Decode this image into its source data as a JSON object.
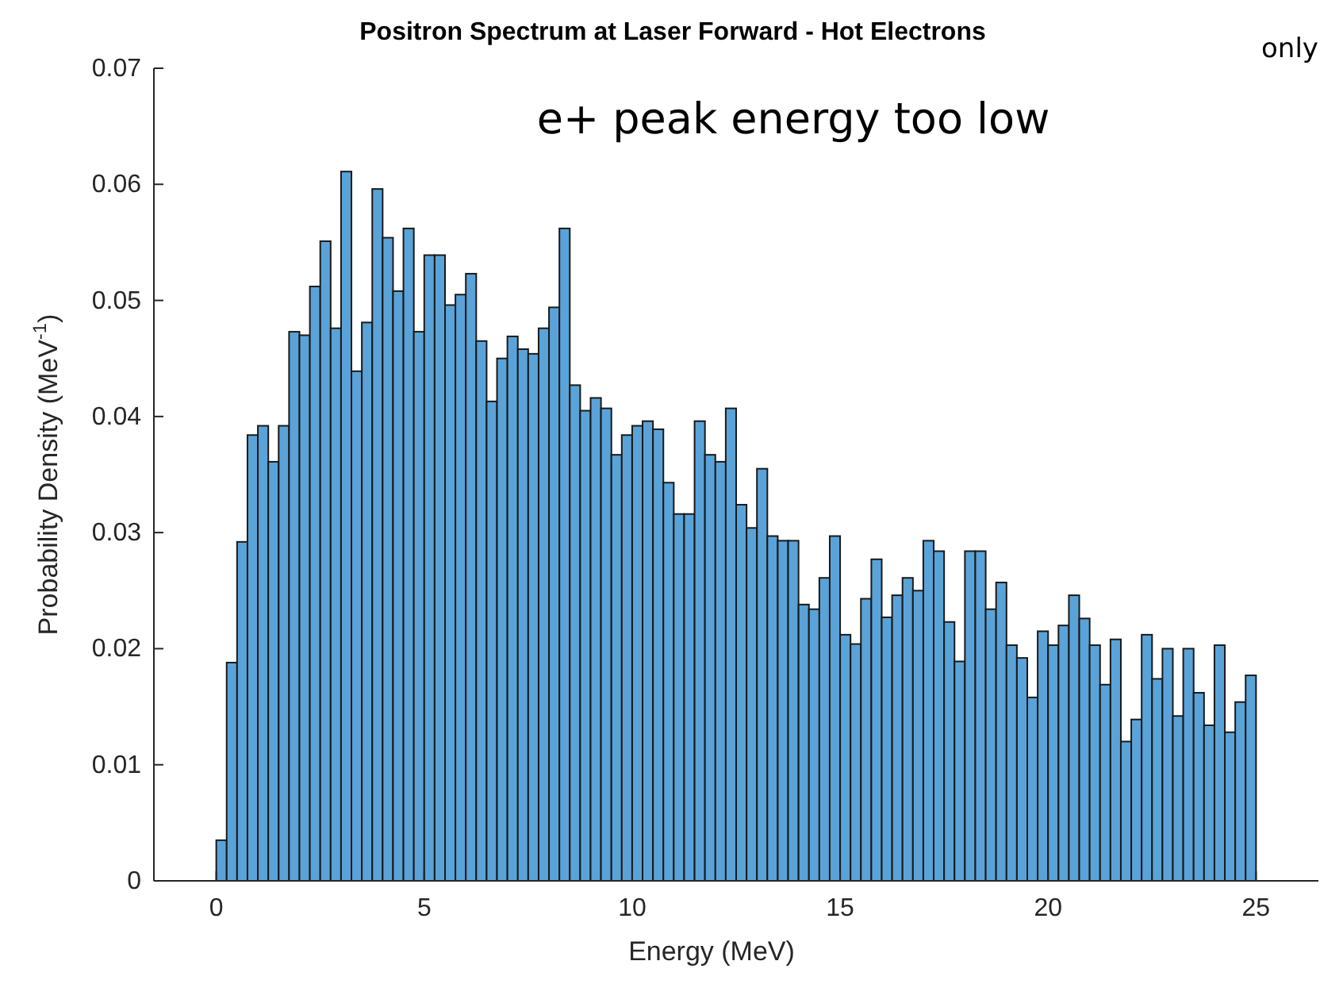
{
  "chart_data": {
    "type": "histogram",
    "title": "Positron Spectrum at Laser Forward - Hot Electrons",
    "xlabel": "Energy (MeV)",
    "ylabel": "Probability Density (MeV$^{-1}$)",
    "annotations": [
      "only",
      "e+ peak energy too low"
    ],
    "bins": [
      0,
      0.25,
      0.5,
      0.75,
      1,
      1.25,
      1.5,
      1.75,
      2,
      2.25,
      2.5,
      2.75,
      3,
      3.25,
      3.5,
      3.75,
      4,
      4.25,
      4.5,
      4.75,
      5,
      5.25,
      5.5,
      5.75,
      6,
      6.25,
      6.5,
      6.75,
      7,
      7.25,
      7.5,
      7.75,
      8,
      8.25,
      8.5,
      8.75,
      9,
      9.25,
      9.5,
      9.75,
      10,
      10.25,
      10.5,
      10.75,
      11,
      11.25,
      11.5,
      11.75,
      12,
      12.25,
      12.5,
      12.75,
      13,
      13.25,
      13.5,
      13.75,
      14,
      14.25,
      14.5,
      14.75,
      15,
      15.25,
      15.5,
      15.75,
      16,
      16.25,
      16.5,
      16.75,
      17,
      17.25,
      17.5,
      17.75,
      18,
      18.25,
      18.5,
      18.75,
      19,
      19.25,
      19.5,
      19.75,
      20,
      20.25,
      20.5,
      20.75,
      21,
      21.25,
      21.5,
      21.75,
      22,
      22.25,
      22.5,
      22.75,
      23,
      23.25,
      23.5,
      23.75,
      24,
      24.25,
      24.5,
      24.75,
      25
    ],
    "values": [
      0.0035,
      0.0188,
      0.0292,
      0.0384,
      0.0392,
      0.0361,
      0.0392,
      0.0473,
      0.047,
      0.0512,
      0.0551,
      0.0476,
      0.0611,
      0.0439,
      0.0481,
      0.0596,
      0.0554,
      0.0508,
      0.0562,
      0.0473,
      0.0539,
      0.0539,
      0.0496,
      0.0505,
      0.0523,
      0.0465,
      0.0413,
      0.045,
      0.0469,
      0.0458,
      0.0454,
      0.0476,
      0.0494,
      0.0562,
      0.0427,
      0.0405,
      0.0416,
      0.0407,
      0.0367,
      0.0384,
      0.0392,
      0.0396,
      0.0389,
      0.0343,
      0.0316,
      0.0316,
      0.0396,
      0.0367,
      0.0361,
      0.0407,
      0.0324,
      0.0304,
      0.0355,
      0.0297,
      0.0293,
      0.0293,
      0.0238,
      0.0234,
      0.0261,
      0.0297,
      0.0212,
      0.0204,
      0.0243,
      0.0277,
      0.0227,
      0.0246,
      0.0261,
      0.025,
      0.0293,
      0.0284,
      0.0223,
      0.0189,
      0.0284,
      0.0284,
      0.0234,
      0.0257,
      0.0203,
      0.0192,
      0.0158,
      0.0215,
      0.0203,
      0.022,
      0.0246,
      0.0226,
      0.0203,
      0.0169,
      0.0208,
      0.012,
      0.0139,
      0.0212,
      0.0174,
      0.02,
      0.0142,
      0.02,
      0.0162,
      0.0134,
      0.0203,
      0.0128,
      0.0154,
      0.0177
    ],
    "color": "#5aa3d8",
    "xlim": [
      -1.5,
      26.5
    ],
    "xticks": [
      0,
      5,
      10,
      15,
      20,
      25
    ],
    "ylim": [
      0,
      0.07
    ],
    "yticks": [
      0,
      0.01,
      0.02,
      0.03,
      0.04,
      0.05,
      0.06,
      0.07
    ]
  }
}
